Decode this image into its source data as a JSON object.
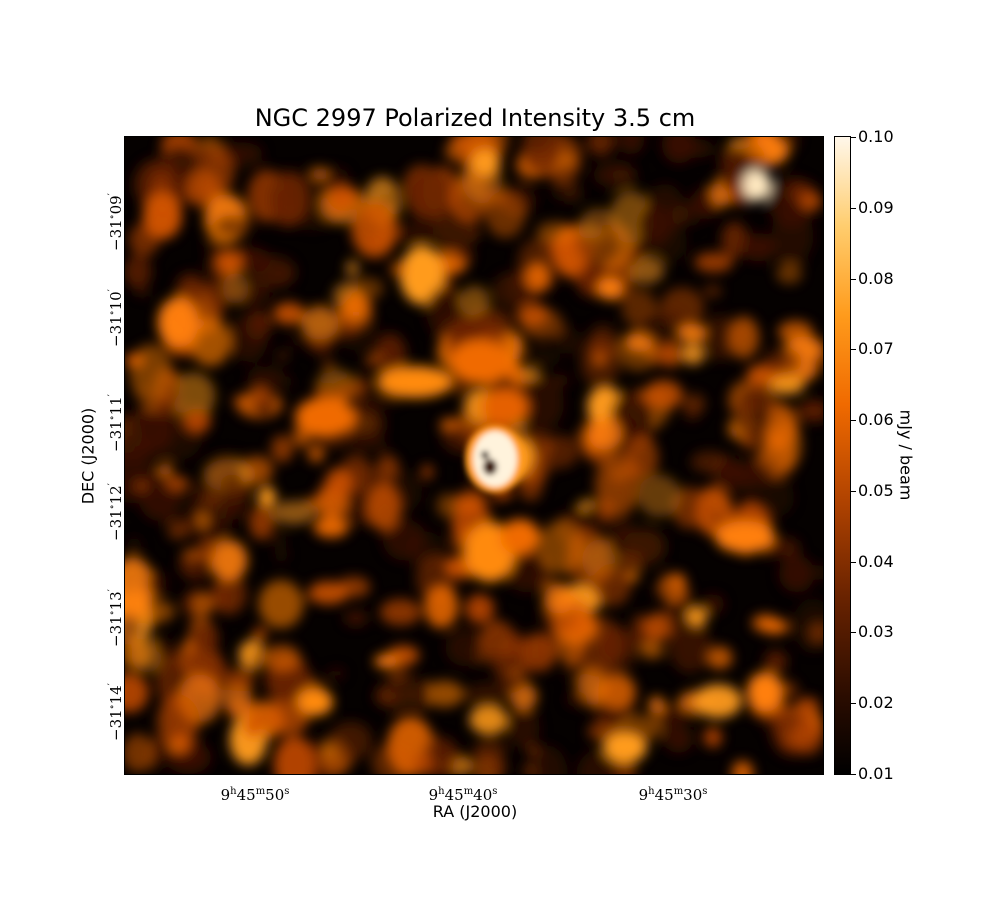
{
  "title": "NGC 2997 Polarized Intensity 3.5 cm",
  "xlabel": "RA (J2000)",
  "ylabel": "DEC (J2000)",
  "colorbar": {
    "unit": "mJy / beam",
    "ticks": [
      "0.10",
      "0.09",
      "0.08",
      "0.07",
      "0.06",
      "0.05",
      "0.04",
      "0.03",
      "0.02",
      "0.01"
    ],
    "colormap": [
      "#000000",
      "#6a2300",
      "#f06a00",
      "#ff9b1c",
      "#fff7ea"
    ]
  },
  "x_ticks": [
    {
      "h": "9",
      "m": "45",
      "s": "50"
    },
    {
      "h": "9",
      "m": "45",
      "s": "40"
    },
    {
      "h": "9",
      "m": "45",
      "s": "30"
    }
  ],
  "y_ticks": [
    {
      "deg": "−31",
      "min": "09"
    },
    {
      "deg": "−31",
      "min": "10"
    },
    {
      "deg": "−31",
      "min": "11"
    },
    {
      "deg": "−31",
      "min": "12"
    },
    {
      "deg": "−31",
      "min": "13"
    },
    {
      "deg": "−31",
      "min": "14"
    }
  ]
}
